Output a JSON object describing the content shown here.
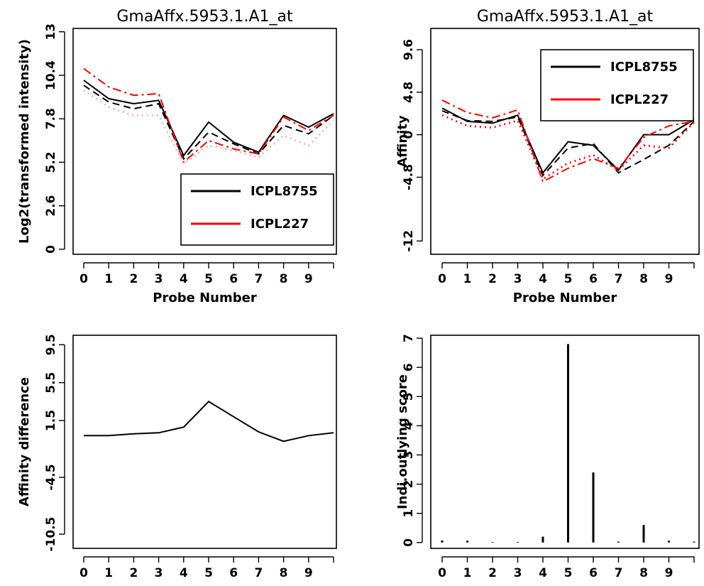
{
  "chart_data": [
    {
      "type": "line",
      "title": "GmaAffx.5953.1.A1_at",
      "xlabel": "Probe Number",
      "ylabel": "Log2(transformed intensity)",
      "x": [
        0,
        1,
        2,
        3,
        4,
        5,
        6,
        7,
        8,
        9,
        10
      ],
      "xticks": [
        "0",
        "1",
        "2",
        "3",
        "4",
        "5",
        "6",
        "7",
        "8",
        "9"
      ],
      "yticks": [
        "0",
        "2.6",
        "5.2",
        "7.8",
        "10.4",
        "13"
      ],
      "yticks_values": [
        0,
        2.6,
        5.2,
        7.8,
        10.4,
        13
      ],
      "ylim": [
        -0.3,
        13.2
      ],
      "legend_position": "bottom-right",
      "series": [
        {
          "name": "ICPL8755",
          "color": "#000000",
          "style": "solid",
          "legend": true,
          "values": [
            10.1,
            9.0,
            8.7,
            8.9,
            5.6,
            7.6,
            6.4,
            5.8,
            8.0,
            7.3,
            8.1
          ]
        },
        {
          "name": "",
          "color": "#000000",
          "style": "dashed",
          "legend": false,
          "values": [
            9.8,
            8.8,
            8.4,
            8.7,
            5.4,
            7.0,
            6.3,
            5.7,
            7.4,
            6.9,
            8.0
          ]
        },
        {
          "name": "ICPL227",
          "color": "#ff0000",
          "style": "dashdot",
          "legend": true,
          "values": [
            10.8,
            9.7,
            9.2,
            9.3,
            5.2,
            6.5,
            6.0,
            5.7,
            7.9,
            7.1,
            8.0
          ]
        },
        {
          "name": "",
          "color": "#ffaaaa",
          "style": "dotted",
          "legend": false,
          "values": [
            9.5,
            8.5,
            8.0,
            8.0,
            5.1,
            6.2,
            5.9,
            5.5,
            6.8,
            6.2,
            7.7
          ]
        }
      ]
    },
    {
      "type": "line",
      "title": "GmaAffx.5953.1.A1_at",
      "xlabel": "Probe Number",
      "ylabel": "Affinity",
      "x": [
        0,
        1,
        2,
        3,
        4,
        5,
        6,
        7,
        8,
        9,
        10
      ],
      "xticks": [
        "0",
        "1",
        "2",
        "3",
        "4",
        "5",
        "6",
        "7",
        "8",
        "9"
      ],
      "yticks": [
        "-12",
        "-4.8",
        "0",
        "4.8",
        "9.6"
      ],
      "yticks_values": [
        -12,
        -4.8,
        0,
        4.8,
        9.6
      ],
      "ylim": [
        -13.5,
        12
      ],
      "legend_position": "top-right",
      "series": [
        {
          "name": "ICPL8755",
          "color": "#000000",
          "style": "solid",
          "legend": true,
          "values": [
            3.0,
            1.5,
            1.3,
            2.2,
            -4.3,
            -0.8,
            -1.2,
            -4.0,
            0.0,
            0.0,
            1.7
          ]
        },
        {
          "name": "",
          "color": "#000000",
          "style": "dashed",
          "legend": false,
          "values": [
            2.7,
            1.6,
            1.5,
            2.0,
            -4.6,
            -1.5,
            -1.0,
            -4.3,
            -2.8,
            -1.2,
            1.5
          ]
        },
        {
          "name": "ICPL227",
          "color": "#ff0000",
          "style": "dashdot",
          "legend": true,
          "values": [
            3.9,
            2.5,
            1.9,
            2.8,
            -5.3,
            -3.8,
            -2.7,
            -3.8,
            -0.3,
            1.0,
            1.5
          ]
        },
        {
          "name": "",
          "color": "#ff0000",
          "style": "dotted",
          "legend": false,
          "values": [
            2.2,
            1.0,
            0.8,
            1.6,
            -5.0,
            -3.2,
            -2.3,
            -4.0,
            -1.2,
            -1.5,
            1.4
          ]
        }
      ]
    },
    {
      "type": "line",
      "title": "",
      "xlabel": "",
      "ylabel": "Affinity difference",
      "x": [
        0,
        1,
        2,
        3,
        4,
        5,
        6,
        7,
        8,
        9,
        10
      ],
      "xticks": [
        "0",
        "1",
        "2",
        "3",
        "4",
        "5",
        "6",
        "7",
        "8",
        "9"
      ],
      "yticks": [
        "-10.5",
        "-4.5",
        "1.5",
        "5.5",
        "9.5"
      ],
      "yticks_values": [
        -10.5,
        -4.5,
        1.5,
        5.5,
        9.5
      ],
      "ylim": [
        -12,
        10.5
      ],
      "series": [
        {
          "name": "",
          "color": "#000000",
          "style": "solid",
          "values": [
            -0.1,
            -0.1,
            0.1,
            0.2,
            0.8,
            3.5,
            1.9,
            0.3,
            -0.7,
            -0.1,
            0.2
          ]
        }
      ]
    },
    {
      "type": "bar",
      "title": "",
      "xlabel": "",
      "ylabel": "Indi.outlying score",
      "x": [
        0,
        1,
        2,
        3,
        4,
        5,
        6,
        7,
        8,
        9,
        10
      ],
      "xticks": [
        "0",
        "1",
        "2",
        "3",
        "4",
        "5",
        "6",
        "7",
        "8",
        "9"
      ],
      "yticks": [
        "0",
        "1",
        "2",
        "3",
        "4",
        "5",
        "6",
        "7"
      ],
      "yticks_values": [
        0,
        1,
        2,
        3,
        4,
        5,
        6,
        7
      ],
      "ylim": [
        -0.2,
        7.1
      ],
      "values": [
        0.07,
        0.06,
        0.02,
        0.02,
        0.2,
        6.8,
        2.4,
        0.03,
        0.6,
        0.06,
        0.03
      ]
    }
  ]
}
